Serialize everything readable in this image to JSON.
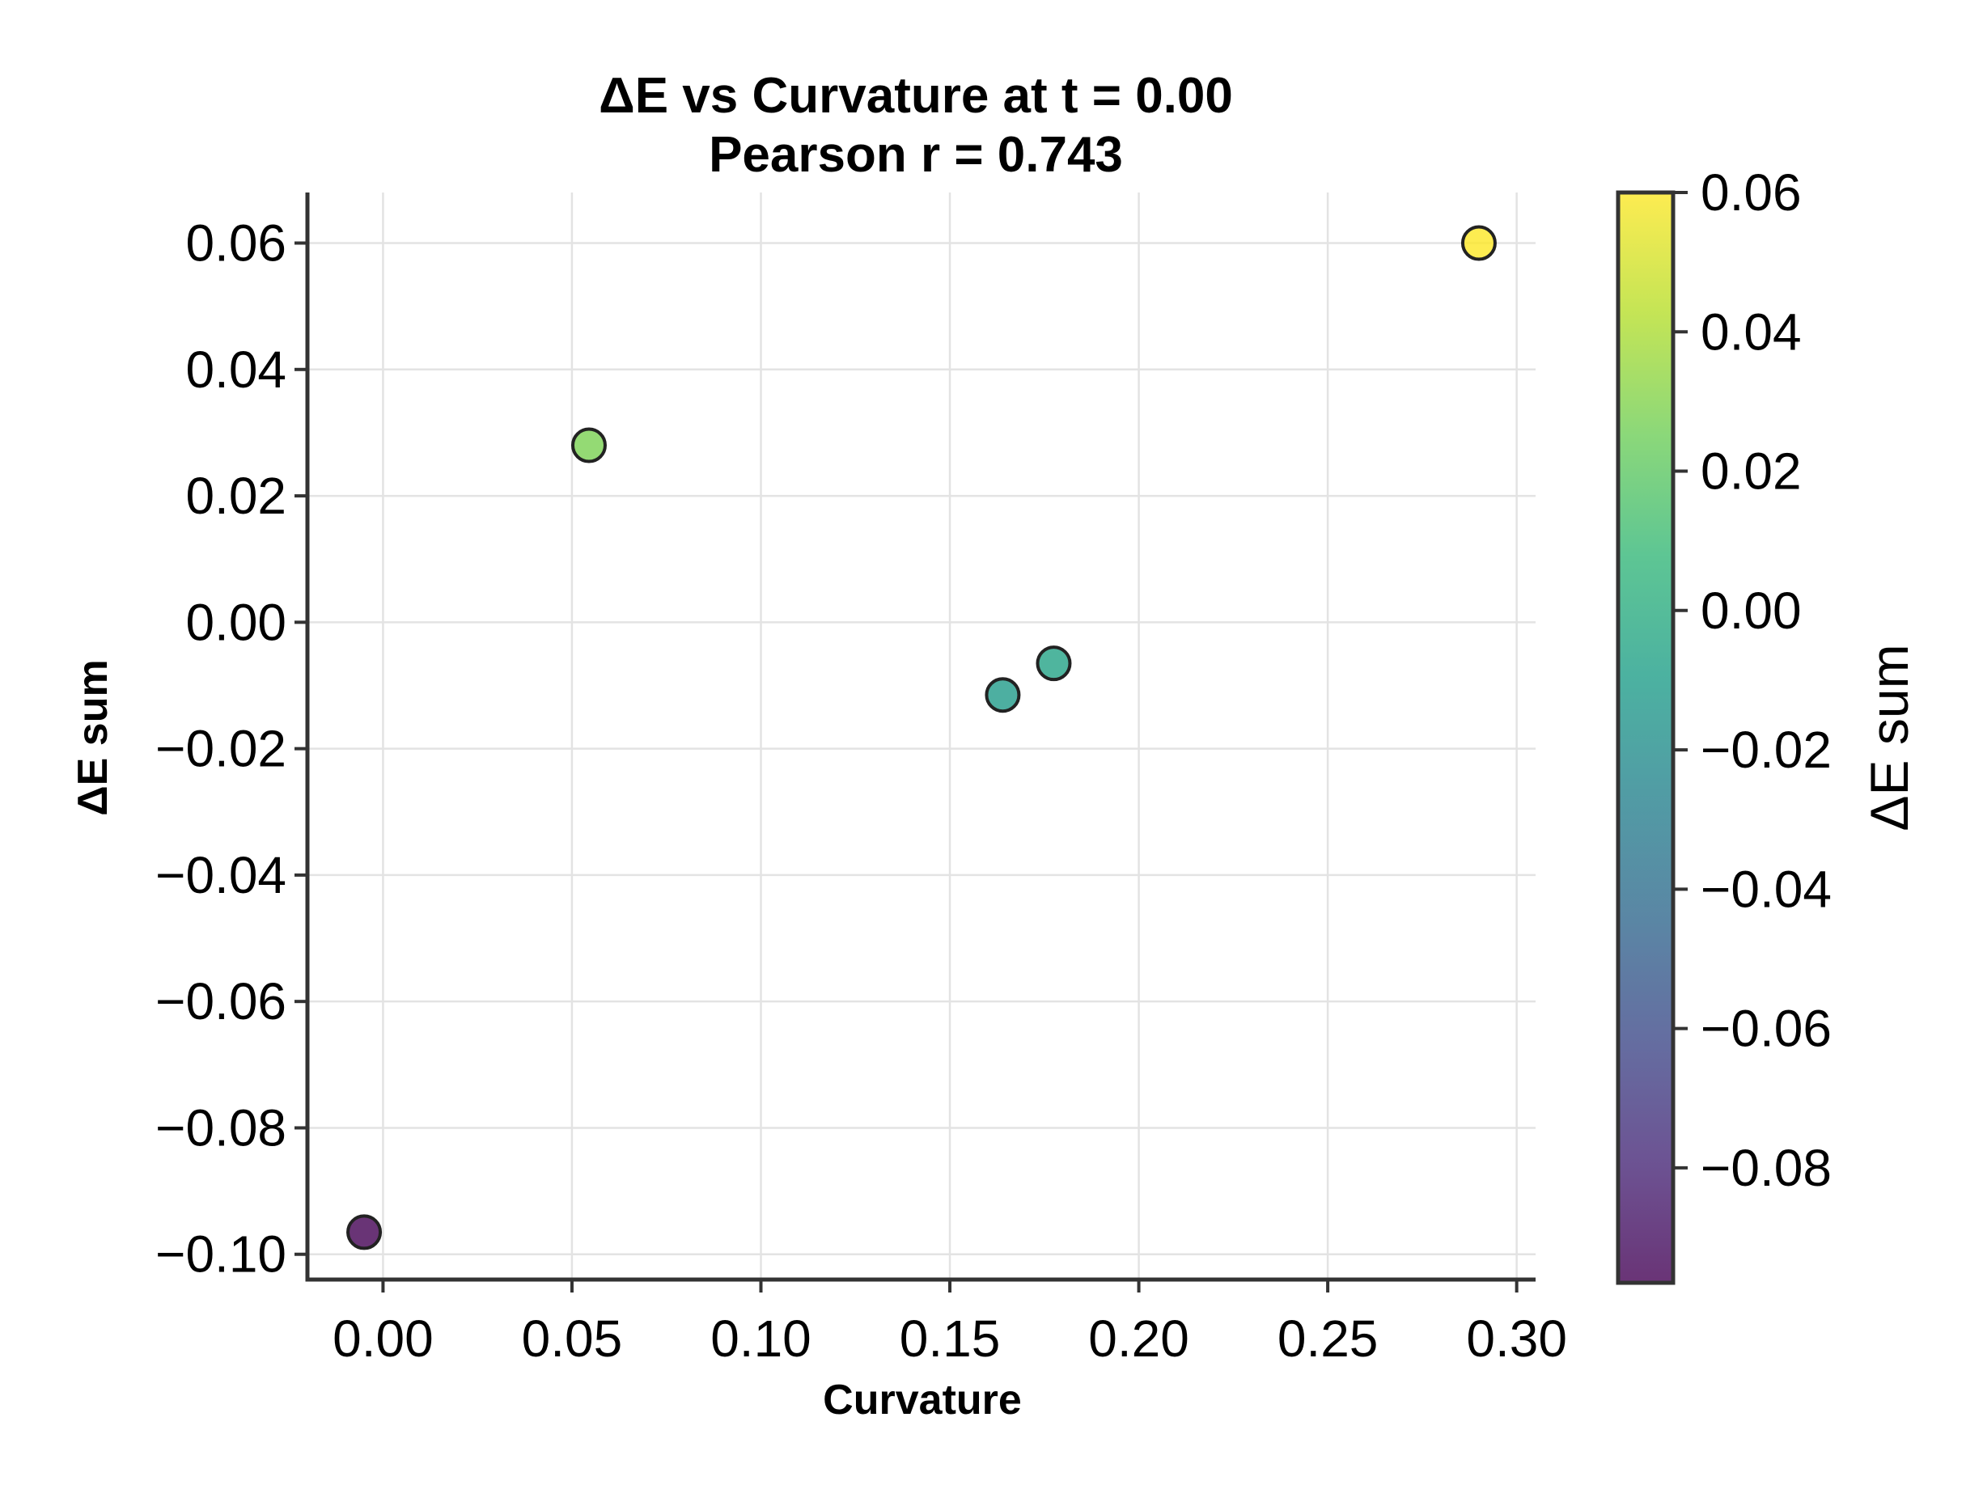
{
  "chart_data": {
    "type": "scatter",
    "title": "ΔE vs Curvature at t = 0.00",
    "subtitle": "Pearson r = 0.743",
    "xlabel": "Curvature",
    "ylabel": "ΔE sum",
    "xlim": [
      -0.02,
      0.305
    ],
    "ylim": [
      -0.104,
      0.068
    ],
    "xticks": [
      0.0,
      0.05,
      0.1,
      0.15,
      0.2,
      0.25,
      0.3
    ],
    "xtick_labels": [
      "0.00",
      "0.05",
      "0.10",
      "0.15",
      "0.20",
      "0.25",
      "0.30"
    ],
    "yticks": [
      0.06,
      0.04,
      0.02,
      0.0,
      -0.02,
      -0.04,
      -0.06,
      -0.08,
      -0.1
    ],
    "ytick_labels": [
      "0.06",
      "0.04",
      "0.02",
      "0.00",
      "−0.02",
      "−0.04",
      "−0.06",
      "−0.08",
      "−0.10"
    ],
    "grid": true,
    "points": [
      {
        "x": -0.005,
        "y": -0.0965,
        "c": -0.0965
      },
      {
        "x": 0.0545,
        "y": 0.028,
        "c": 0.028
      },
      {
        "x": 0.164,
        "y": -0.0115,
        "c": -0.0115
      },
      {
        "x": 0.1775,
        "y": -0.0065,
        "c": -0.0065
      },
      {
        "x": 0.29,
        "y": 0.06,
        "c": 0.06
      }
    ],
    "colorbar": {
      "label": "ΔE sum",
      "range": [
        -0.0965,
        0.06
      ],
      "ticks": [
        0.06,
        0.04,
        0.02,
        0.0,
        -0.02,
        -0.04,
        -0.06,
        -0.08
      ],
      "tick_labels": [
        "0.06",
        "0.04",
        "0.02",
        "0.00",
        "−0.02",
        "−0.04",
        "−0.06",
        "−0.08"
      ],
      "colormap": "viridis",
      "colormap_stops": [
        "#440154",
        "#482878",
        "#3e4989",
        "#31688e",
        "#26828e",
        "#1f9e89",
        "#35b779",
        "#6ece58",
        "#b5de2b",
        "#fde725"
      ]
    },
    "marker_alpha": 0.8,
    "marker_edge_color": "#222222",
    "grid_color": "#e3e3e3",
    "spine_color": "#333333"
  }
}
